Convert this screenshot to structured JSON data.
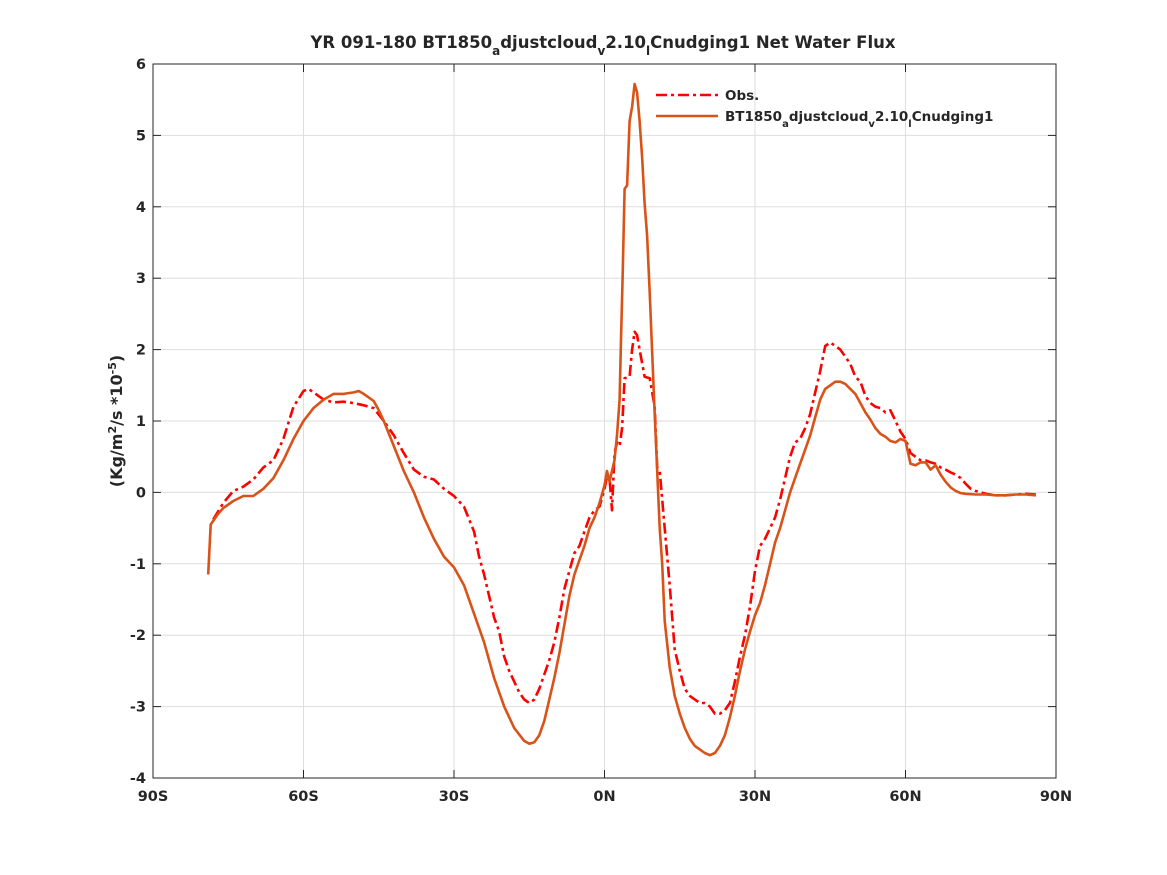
{
  "chart_data": {
    "type": "line",
    "title": {
      "prefix": "YR 091-180 BT1850",
      "sub1": "a",
      "mid1": "djustcloud",
      "sub2": "v",
      "mid2": "2.10",
      "sub3": "l",
      "suffix": "Cnudging1  Net Water Flux"
    },
    "ylabel": {
      "p1": "(Kg/m",
      "sup1": "2",
      "p2": "/s *10",
      "sup2": "-5",
      "p3": ")"
    },
    "xlabel": "",
    "xlim": [
      -90,
      90
    ],
    "ylim": [
      -4,
      6
    ],
    "xticks": [
      {
        "value": -90,
        "label": "90S"
      },
      {
        "value": -60,
        "label": "60S"
      },
      {
        "value": -30,
        "label": "30S"
      },
      {
        "value": 0,
        "label": "0N"
      },
      {
        "value": 30,
        "label": "30N"
      },
      {
        "value": 60,
        "label": "60N"
      },
      {
        "value": 90,
        "label": "90N"
      }
    ],
    "yticks": [
      {
        "value": -4,
        "label": "-4"
      },
      {
        "value": -3,
        "label": "-3"
      },
      {
        "value": -2,
        "label": "-2"
      },
      {
        "value": -1,
        "label": "-1"
      },
      {
        "value": 0,
        "label": "0"
      },
      {
        "value": 1,
        "label": "1"
      },
      {
        "value": 2,
        "label": "2"
      },
      {
        "value": 3,
        "label": "3"
      },
      {
        "value": 4,
        "label": "4"
      },
      {
        "value": 5,
        "label": "5"
      },
      {
        "value": 6,
        "label": "6"
      }
    ],
    "grid": true,
    "legend_position": "top-right",
    "series": [
      {
        "name": "Obs.",
        "legend": {
          "p1": "Obs."
        },
        "color": "#ff0000",
        "style": "dashdot",
        "points": [
          [
            -78,
            -0.38
          ],
          [
            -76,
            -0.15
          ],
          [
            -74,
            0.02
          ],
          [
            -72,
            0.08
          ],
          [
            -70,
            0.18
          ],
          [
            -68,
            0.35
          ],
          [
            -66,
            0.45
          ],
          [
            -64,
            0.75
          ],
          [
            -62,
            1.2
          ],
          [
            -60,
            1.42
          ],
          [
            -59,
            1.45
          ],
          [
            -58,
            1.4
          ],
          [
            -56,
            1.3
          ],
          [
            -54,
            1.26
          ],
          [
            -52,
            1.27
          ],
          [
            -50,
            1.25
          ],
          [
            -48,
            1.22
          ],
          [
            -46,
            1.18
          ],
          [
            -44,
            1.0
          ],
          [
            -42,
            0.8
          ],
          [
            -40,
            0.55
          ],
          [
            -38,
            0.32
          ],
          [
            -36,
            0.22
          ],
          [
            -34,
            0.18
          ],
          [
            -32,
            0.05
          ],
          [
            -30,
            -0.05
          ],
          [
            -28,
            -0.2
          ],
          [
            -26,
            -0.55
          ],
          [
            -25,
            -0.9
          ],
          [
            -24,
            -1.15
          ],
          [
            -23,
            -1.45
          ],
          [
            -22,
            -1.75
          ],
          [
            -21,
            -1.95
          ],
          [
            -20,
            -2.3
          ],
          [
            -19,
            -2.5
          ],
          [
            -18,
            -2.65
          ],
          [
            -17,
            -2.8
          ],
          [
            -16,
            -2.9
          ],
          [
            -15,
            -2.95
          ],
          [
            -14,
            -2.9
          ],
          [
            -13,
            -2.75
          ],
          [
            -12,
            -2.55
          ],
          [
            -11,
            -2.35
          ],
          [
            -10,
            -2.1
          ],
          [
            -9,
            -1.75
          ],
          [
            -8,
            -1.35
          ],
          [
            -7,
            -1.1
          ],
          [
            -6,
            -0.85
          ],
          [
            -5,
            -0.75
          ],
          [
            -4,
            -0.55
          ],
          [
            -3,
            -0.35
          ],
          [
            -2,
            -0.25
          ],
          [
            -1,
            -0.2
          ],
          [
            0,
            0.05
          ],
          [
            0.6,
            0.25
          ],
          [
            1,
            0.2
          ],
          [
            1.5,
            -0.25
          ],
          [
            2,
            0.55
          ],
          [
            2.5,
            0.7
          ],
          [
            3,
            0.65
          ],
          [
            3.5,
            0.9
          ],
          [
            4,
            1.6
          ],
          [
            5,
            1.62
          ],
          [
            5.5,
            2.0
          ],
          [
            6,
            2.25
          ],
          [
            6.5,
            2.2
          ],
          [
            7,
            2.0
          ],
          [
            8,
            1.62
          ],
          [
            9,
            1.6
          ],
          [
            10,
            1.2
          ],
          [
            10.5,
            0.35
          ],
          [
            11,
            0.3
          ],
          [
            12,
            -0.5
          ],
          [
            13,
            -1.3
          ],
          [
            14,
            -2.2
          ],
          [
            15,
            -2.5
          ],
          [
            16,
            -2.75
          ],
          [
            17,
            -2.85
          ],
          [
            18,
            -2.9
          ],
          [
            19,
            -2.95
          ],
          [
            20,
            -2.95
          ],
          [
            21,
            -3.0
          ],
          [
            22,
            -3.1
          ],
          [
            23,
            -3.1
          ],
          [
            24,
            -3.05
          ],
          [
            25,
            -2.95
          ],
          [
            26,
            -2.65
          ],
          [
            27,
            -2.3
          ],
          [
            28,
            -2.0
          ],
          [
            29,
            -1.6
          ],
          [
            30,
            -1.1
          ],
          [
            31,
            -0.75
          ],
          [
            32,
            -0.65
          ],
          [
            33,
            -0.5
          ],
          [
            34,
            -0.35
          ],
          [
            35,
            -0.1
          ],
          [
            36,
            0.2
          ],
          [
            37,
            0.5
          ],
          [
            38,
            0.7
          ],
          [
            39,
            0.75
          ],
          [
            40,
            0.9
          ],
          [
            41,
            1.1
          ],
          [
            42,
            1.4
          ],
          [
            43,
            1.7
          ],
          [
            44,
            2.05
          ],
          [
            45,
            2.1
          ],
          [
            46,
            2.05
          ],
          [
            47,
            2.0
          ],
          [
            48,
            1.9
          ],
          [
            49,
            1.8
          ],
          [
            50,
            1.62
          ],
          [
            51,
            1.55
          ],
          [
            52,
            1.35
          ],
          [
            53,
            1.25
          ],
          [
            54,
            1.2
          ],
          [
            55,
            1.18
          ],
          [
            56,
            1.12
          ],
          [
            57,
            1.15
          ],
          [
            58,
            1.0
          ],
          [
            59,
            0.85
          ],
          [
            60,
            0.75
          ],
          [
            61,
            0.55
          ],
          [
            62,
            0.5
          ],
          [
            63,
            0.45
          ],
          [
            64,
            0.45
          ],
          [
            65,
            0.42
          ],
          [
            66,
            0.4
          ],
          [
            67,
            0.35
          ],
          [
            68,
            0.32
          ],
          [
            69,
            0.28
          ],
          [
            70,
            0.25
          ],
          [
            71,
            0.2
          ],
          [
            72,
            0.12
          ],
          [
            73,
            0.05
          ],
          [
            74,
            0.02
          ],
          [
            75,
            0.0
          ],
          [
            76,
            -0.02
          ],
          [
            78,
            -0.04
          ],
          [
            80,
            -0.04
          ],
          [
            82,
            -0.03
          ],
          [
            84,
            -0.02
          ],
          [
            86,
            -0.03
          ]
        ]
      },
      {
        "name": "BT1850_adjustcloud_v2.10_lCnudging1",
        "legend": {
          "p1": "BT1850",
          "s1": "a",
          "p2": "djustcloud",
          "s2": "v",
          "p3": "2.10",
          "s3": "l",
          "p4": "Cnudging1"
        },
        "color": "#d95319",
        "style": "solid",
        "points": [
          [
            -79,
            -1.15
          ],
          [
            -78.5,
            -0.45
          ],
          [
            -77,
            -0.3
          ],
          [
            -76,
            -0.22
          ],
          [
            -74,
            -0.12
          ],
          [
            -72,
            -0.05
          ],
          [
            -70,
            -0.05
          ],
          [
            -68,
            0.05
          ],
          [
            -66,
            0.2
          ],
          [
            -64,
            0.45
          ],
          [
            -62,
            0.75
          ],
          [
            -60,
            1.0
          ],
          [
            -58,
            1.18
          ],
          [
            -56,
            1.3
          ],
          [
            -54,
            1.38
          ],
          [
            -52,
            1.38
          ],
          [
            -50,
            1.4
          ],
          [
            -49,
            1.42
          ],
          [
            -48,
            1.38
          ],
          [
            -46,
            1.28
          ],
          [
            -45,
            1.15
          ],
          [
            -44,
            1.0
          ],
          [
            -42,
            0.65
          ],
          [
            -40,
            0.3
          ],
          [
            -38,
            0.0
          ],
          [
            -36,
            -0.35
          ],
          [
            -34,
            -0.65
          ],
          [
            -32,
            -0.9
          ],
          [
            -30,
            -1.05
          ],
          [
            -28,
            -1.3
          ],
          [
            -26,
            -1.7
          ],
          [
            -24,
            -2.1
          ],
          [
            -22,
            -2.6
          ],
          [
            -20,
            -3.0
          ],
          [
            -18,
            -3.3
          ],
          [
            -16,
            -3.48
          ],
          [
            -15,
            -3.52
          ],
          [
            -14,
            -3.5
          ],
          [
            -13,
            -3.4
          ],
          [
            -12,
            -3.2
          ],
          [
            -11,
            -2.9
          ],
          [
            -10,
            -2.6
          ],
          [
            -9,
            -2.25
          ],
          [
            -8,
            -1.85
          ],
          [
            -7,
            -1.45
          ],
          [
            -6,
            -1.15
          ],
          [
            -5,
            -0.95
          ],
          [
            -4,
            -0.75
          ],
          [
            -3,
            -0.5
          ],
          [
            -2,
            -0.35
          ],
          [
            -1,
            -0.15
          ],
          [
            0,
            0.1
          ],
          [
            0.5,
            0.3
          ],
          [
            1,
            0.15
          ],
          [
            2,
            0.45
          ],
          [
            2.5,
            0.8
          ],
          [
            3,
            1.3
          ],
          [
            3.3,
            2.2
          ],
          [
            3.6,
            3.0
          ],
          [
            4,
            4.25
          ],
          [
            4.5,
            4.3
          ],
          [
            5,
            5.2
          ],
          [
            5.5,
            5.4
          ],
          [
            6,
            5.72
          ],
          [
            6.5,
            5.6
          ],
          [
            7,
            5.2
          ],
          [
            7.5,
            4.7
          ],
          [
            8,
            4.05
          ],
          [
            8.5,
            3.6
          ],
          [
            9,
            2.8
          ],
          [
            9.5,
            1.95
          ],
          [
            10,
            1.1
          ],
          [
            10.5,
            0.3
          ],
          [
            11,
            -0.5
          ],
          [
            11.5,
            -1.0
          ],
          [
            12,
            -1.8
          ],
          [
            13,
            -2.45
          ],
          [
            14,
            -2.85
          ],
          [
            15,
            -3.1
          ],
          [
            16,
            -3.3
          ],
          [
            17,
            -3.45
          ],
          [
            18,
            -3.55
          ],
          [
            19,
            -3.6
          ],
          [
            20,
            -3.65
          ],
          [
            21,
            -3.68
          ],
          [
            22,
            -3.65
          ],
          [
            23,
            -3.55
          ],
          [
            24,
            -3.4
          ],
          [
            25,
            -3.15
          ],
          [
            26,
            -2.85
          ],
          [
            27,
            -2.5
          ],
          [
            28,
            -2.2
          ],
          [
            29,
            -1.95
          ],
          [
            30,
            -1.72
          ],
          [
            31,
            -1.55
          ],
          [
            32,
            -1.3
          ],
          [
            33,
            -1.0
          ],
          [
            34,
            -0.7
          ],
          [
            35,
            -0.5
          ],
          [
            36,
            -0.25
          ],
          [
            37,
            0.0
          ],
          [
            38,
            0.2
          ],
          [
            39,
            0.4
          ],
          [
            40,
            0.6
          ],
          [
            41,
            0.8
          ],
          [
            42,
            1.05
          ],
          [
            43,
            1.3
          ],
          [
            44,
            1.45
          ],
          [
            45,
            1.5
          ],
          [
            46,
            1.55
          ],
          [
            47,
            1.55
          ],
          [
            48,
            1.52
          ],
          [
            49,
            1.45
          ],
          [
            50,
            1.38
          ],
          [
            51,
            1.25
          ],
          [
            52,
            1.12
          ],
          [
            53,
            1.02
          ],
          [
            54,
            0.9
          ],
          [
            55,
            0.82
          ],
          [
            56,
            0.78
          ],
          [
            57,
            0.72
          ],
          [
            58,
            0.7
          ],
          [
            59,
            0.75
          ],
          [
            60,
            0.72
          ],
          [
            61,
            0.4
          ],
          [
            62,
            0.38
          ],
          [
            63,
            0.42
          ],
          [
            64,
            0.42
          ],
          [
            65,
            0.32
          ],
          [
            66,
            0.38
          ],
          [
            67,
            0.25
          ],
          [
            68,
            0.15
          ],
          [
            69,
            0.07
          ],
          [
            70,
            0.02
          ],
          [
            71,
            -0.01
          ],
          [
            72,
            -0.02
          ],
          [
            74,
            -0.03
          ],
          [
            76,
            -0.03
          ],
          [
            78,
            -0.04
          ],
          [
            80,
            -0.04
          ],
          [
            82,
            -0.03
          ],
          [
            84,
            -0.03
          ],
          [
            86,
            -0.04
          ]
        ]
      }
    ]
  }
}
